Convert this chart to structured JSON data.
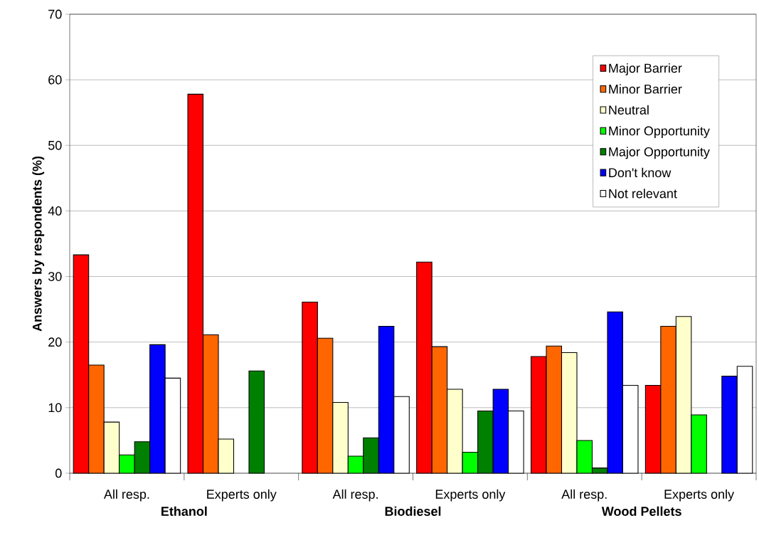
{
  "chart_data": {
    "type": "bar",
    "ylabel": "Answers by respondents (%)",
    "categories": [
      "All resp.",
      "Experts only",
      "All resp.",
      "Experts only",
      "All resp.",
      "Experts only"
    ],
    "series": [
      {
        "name": "Major Barrier",
        "color": "#ff0000",
        "values": [
          33.3,
          57.8,
          26.1,
          32.2,
          17.8,
          13.4
        ]
      },
      {
        "name": "Minor Barrier",
        "color": "#ff6600",
        "values": [
          16.5,
          21.1,
          20.6,
          19.3,
          19.4,
          22.4
        ]
      },
      {
        "name": "Neutral",
        "color": "#ffffcc",
        "values": [
          7.8,
          5.2,
          10.8,
          12.8,
          18.4,
          23.9
        ]
      },
      {
        "name": "Minor Opportunity",
        "color": "#00ff00",
        "values": [
          2.8,
          null,
          2.6,
          3.2,
          5.0,
          8.9
        ]
      },
      {
        "name": "Major Opportunity",
        "color": "#008000",
        "values": [
          4.8,
          15.6,
          5.4,
          9.5,
          0.8,
          null
        ]
      },
      {
        "name": "Don't know",
        "color": "#0000ff",
        "values": [
          19.6,
          null,
          22.4,
          12.8,
          24.6,
          14.8
        ]
      },
      {
        "name": "Not relevant",
        "color": "#ffffff",
        "values": [
          14.5,
          null,
          11.7,
          9.5,
          13.4,
          16.3
        ]
      }
    ],
    "annotations": [
      "Ethanol",
      "Biodiesel",
      "Wood Pellets"
    ],
    "ylim": [
      0,
      70
    ],
    "yticks": [
      0,
      10,
      20,
      30,
      40,
      50,
      60,
      70
    ],
    "grid": "y",
    "legend": "top right"
  }
}
